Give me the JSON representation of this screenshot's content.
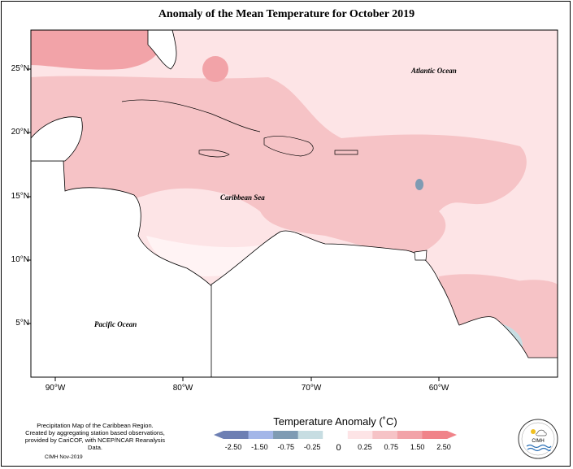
{
  "title": "Anomaly of the Mean Temperature for October 2019",
  "lat_labels": [
    "25°N",
    "20°N",
    "15°N",
    "10°N",
    "5°N"
  ],
  "lon_labels": [
    "90°W",
    "80°W",
    "70°W",
    "60°W"
  ],
  "oceans": {
    "atlantic": "Atlantic Ocean",
    "caribbean": "Caribbean Sea",
    "pacific": "Pacific Ocean"
  },
  "footnote": {
    "line1": "Precipitation Map of the Caribbean Region.",
    "line2": "Created by aggregating station based observations,",
    "line3": "provided by CariCOF, with NCEP/NCAR Reanalysis Data.",
    "credit": "CIMH Nov-2019"
  },
  "colorbar": {
    "title": "Temperature Anomaly (˚C)",
    "ticks": [
      "-2.50",
      "-1.50",
      "-0.75",
      "-0.25",
      "0",
      "0.25",
      "0.75",
      "1.50",
      "2.50"
    ],
    "colors": [
      "#6d7fb3",
      "#a3b6e8",
      "#7f9bb3",
      "#c7dde2",
      "#ffffff",
      "#fde4e6",
      "#f6c3c6",
      "#f2a3a8",
      "#f08389"
    ]
  },
  "logo": {
    "text": "CIMH"
  },
  "colors": {
    "warm_light": "#fde4e6",
    "warm_mid": "#f6c3c6",
    "warm_high": "#f2a3a8",
    "cool": "#7f9bb3"
  }
}
